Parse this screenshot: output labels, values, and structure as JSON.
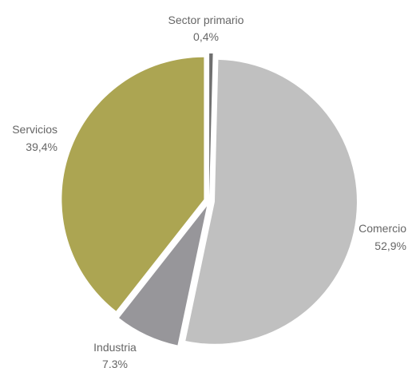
{
  "chart_data": {
    "type": "pie",
    "title": "",
    "legend": "none",
    "slices": [
      {
        "label": "Sector primario",
        "value_label": "0,4%",
        "value": 0.4,
        "color": "#6f6f6f"
      },
      {
        "label": "Comercio",
        "value_label": "52,9%",
        "value": 52.9,
        "color": "#c0c0c0"
      },
      {
        "label": "Industria",
        "value_label": "7,3%",
        "value": 7.3,
        "color": "#97969a"
      },
      {
        "label": "Servicios",
        "value_label": "39,4%",
        "value": 39.4,
        "color": "#aca552"
      }
    ]
  }
}
